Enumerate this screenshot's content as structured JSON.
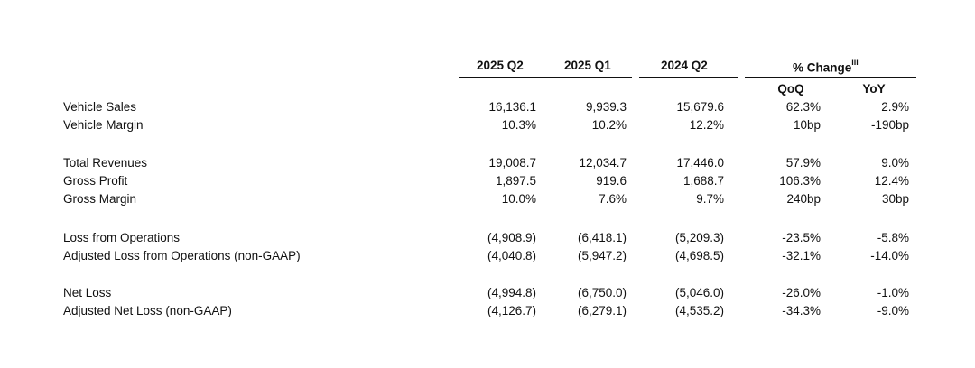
{
  "headers": {
    "col1": "2025 Q2",
    "col2": "2025 Q1",
    "col3": "2024 Q2",
    "pct_change": "% Change",
    "pct_note": "iii",
    "qoq": "QoQ",
    "yoy": "YoY"
  },
  "rows": [
    {
      "label": "Vehicle Sales",
      "v1": "16,136.1",
      "v2": "9,939.3",
      "v3": "15,679.6",
      "qoq": "62.3%",
      "yoy": "2.9%"
    },
    {
      "label": "Vehicle Margin",
      "v1": "10.3%",
      "v2": "10.2%",
      "v3": "12.2%",
      "qoq": "10bp",
      "yoy": "-190bp"
    },
    {
      "label": "Total Revenues",
      "v1": "19,008.7",
      "v2": "12,034.7",
      "v3": "17,446.0",
      "qoq": "57.9%",
      "yoy": "9.0%"
    },
    {
      "label": "Gross Profit",
      "v1": "1,897.5",
      "v2": "919.6",
      "v3": "1,688.7",
      "qoq": "106.3%",
      "yoy": "12.4%"
    },
    {
      "label": "Gross Margin",
      "v1": "10.0%",
      "v2": "7.6%",
      "v3": "9.7%",
      "qoq": "240bp",
      "yoy": "30bp"
    },
    {
      "label": "Loss from Operations",
      "v1": "(4,908.9)",
      "v2": "(6,418.1)",
      "v3": "(5,209.3)",
      "qoq": "-23.5%",
      "yoy": "-5.8%"
    },
    {
      "label": "Adjusted Loss from Operations (non-GAAP)",
      "v1": "(4,040.8)",
      "v2": "(5,947.2)",
      "v3": "(4,698.5)",
      "qoq": "-32.1%",
      "yoy": "-14.0%"
    },
    {
      "label": "Net Loss",
      "v1": "(4,994.8)",
      "v2": "(6,750.0)",
      "v3": "(5,046.0)",
      "qoq": "-26.0%",
      "yoy": "-1.0%"
    },
    {
      "label": "Adjusted Net Loss (non-GAAP)",
      "v1": "(4,126.7)",
      "v2": "(6,279.1)",
      "v3": "(4,535.2)",
      "qoq": "-34.3%",
      "yoy": "-9.0%"
    }
  ]
}
